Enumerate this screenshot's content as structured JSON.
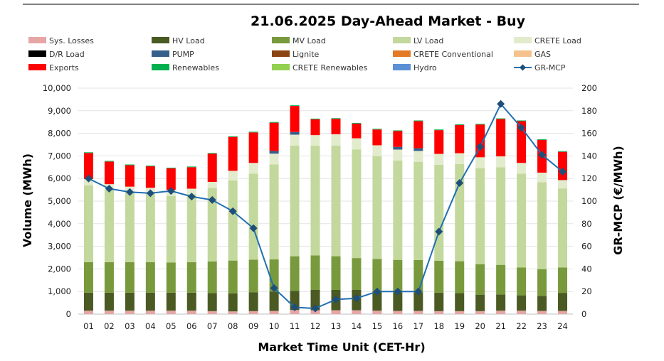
{
  "chart_data": {
    "type": "bar",
    "title": "21.06.2025  Day-Ahead Market - Buy",
    "xlabel": "Market Time Unit (CET-Hr)",
    "ylabel": "Volume (MWh)",
    "y2label": "GR-MCP (€/MWh)",
    "ylim": [
      0,
      10000
    ],
    "y2lim": [
      0,
      200
    ],
    "y_ticks": [
      "0",
      "1,000",
      "2,000",
      "3,000",
      "4,000",
      "5,000",
      "6,000",
      "7,000",
      "8,000",
      "9,000",
      "10,000"
    ],
    "y2_ticks": [
      "0",
      "20",
      "40",
      "60",
      "80",
      "100",
      "120",
      "140",
      "160",
      "180",
      "200"
    ],
    "stacked": true,
    "legend_position": "top",
    "categories": [
      "01",
      "02",
      "03",
      "04",
      "05",
      "06",
      "07",
      "08",
      "09",
      "10",
      "11",
      "12",
      "13",
      "14",
      "15",
      "16",
      "17",
      "18",
      "19",
      "20",
      "21",
      "22",
      "23",
      "24"
    ],
    "series": [
      {
        "name": "Sys. Losses",
        "color": "#e6a6a6",
        "values": [
          150,
          150,
          150,
          150,
          150,
          150,
          130,
          120,
          130,
          140,
          180,
          170,
          170,
          170,
          150,
          140,
          140,
          130,
          130,
          130,
          150,
          150,
          140,
          140
        ]
      },
      {
        "name": "HV Load",
        "color": "#4a5a22",
        "values": [
          800,
          800,
          800,
          800,
          800,
          800,
          800,
          800,
          830,
          850,
          850,
          900,
          900,
          900,
          850,
          820,
          820,
          820,
          800,
          730,
          720,
          680,
          660,
          800
        ]
      },
      {
        "name": "MV Load",
        "color": "#789a3c",
        "values": [
          1350,
          1350,
          1350,
          1350,
          1330,
          1350,
          1400,
          1450,
          1450,
          1430,
          1530,
          1530,
          1490,
          1410,
          1440,
          1440,
          1430,
          1410,
          1410,
          1350,
          1310,
          1230,
          1190,
          1120
        ]
      },
      {
        "name": "LV Load",
        "color": "#c3d89c",
        "values": [
          3400,
          3200,
          3100,
          3050,
          2950,
          3000,
          3250,
          3550,
          3800,
          4200,
          4900,
          4850,
          4900,
          4800,
          4550,
          4400,
          4350,
          4250,
          4300,
          4250,
          4320,
          4150,
          3850,
          3500
        ]
      },
      {
        "name": "CRETE Load",
        "color": "#e2ebcc",
        "values": [
          280,
          250,
          240,
          240,
          270,
          250,
          270,
          420,
          480,
          480,
          480,
          470,
          500,
          500,
          480,
          480,
          480,
          480,
          480,
          480,
          480,
          480,
          420,
          370
        ]
      },
      {
        "name": "D/R Load",
        "color": "#000000",
        "values": [
          0,
          0,
          0,
          0,
          0,
          0,
          0,
          0,
          0,
          0,
          0,
          0,
          0,
          0,
          0,
          0,
          0,
          0,
          0,
          0,
          0,
          0,
          0,
          0
        ]
      },
      {
        "name": "PUMP",
        "color": "#365f8a",
        "values": [
          0,
          0,
          0,
          0,
          0,
          0,
          0,
          0,
          0,
          120,
          120,
          0,
          0,
          0,
          0,
          120,
          120,
          0,
          0,
          0,
          0,
          0,
          0,
          0
        ]
      },
      {
        "name": "Lignite",
        "color": "#8b4513",
        "values": [
          0,
          0,
          0,
          0,
          0,
          0,
          0,
          0,
          0,
          0,
          0,
          0,
          0,
          0,
          0,
          0,
          0,
          0,
          0,
          0,
          0,
          0,
          0,
          0
        ]
      },
      {
        "name": "CRETE Conventional",
        "color": "#e37a25",
        "values": [
          0,
          0,
          0,
          0,
          0,
          0,
          0,
          0,
          0,
          0,
          0,
          0,
          0,
          0,
          0,
          0,
          0,
          0,
          0,
          0,
          0,
          0,
          0,
          0
        ]
      },
      {
        "name": "GAS",
        "color": "#f5c28e",
        "values": [
          0,
          0,
          0,
          0,
          0,
          0,
          0,
          0,
          0,
          0,
          0,
          0,
          0,
          0,
          0,
          0,
          0,
          0,
          0,
          0,
          0,
          0,
          0,
          0
        ]
      },
      {
        "name": "Exports",
        "color": "#ff0000",
        "values": [
          1150,
          1000,
          950,
          950,
          950,
          950,
          1250,
          1500,
          1350,
          1250,
          1150,
          700,
          680,
          650,
          700,
          700,
          1200,
          1050,
          1250,
          1450,
          1650,
          1850,
          1450,
          1250
        ]
      },
      {
        "name": "Renewables",
        "color": "#00b050",
        "values": [
          30,
          30,
          30,
          30,
          30,
          30,
          30,
          30,
          30,
          30,
          30,
          30,
          30,
          30,
          30,
          30,
          30,
          30,
          30,
          30,
          30,
          30,
          30,
          30
        ]
      },
      {
        "name": "CRETE Renewables",
        "color": "#92d050",
        "values": [
          0,
          0,
          0,
          0,
          0,
          0,
          0,
          0,
          0,
          0,
          0,
          0,
          0,
          0,
          0,
          0,
          0,
          0,
          0,
          0,
          0,
          0,
          0,
          0
        ]
      },
      {
        "name": "Hydro",
        "color": "#5b8fd6",
        "values": [
          0,
          0,
          0,
          0,
          0,
          0,
          0,
          0,
          0,
          0,
          0,
          0,
          0,
          0,
          0,
          0,
          0,
          0,
          0,
          0,
          0,
          0,
          0,
          0
        ]
      }
    ],
    "line_series": {
      "name": "GR-MCP",
      "color": "#1f6fb2",
      "marker_color": "#1f4e79",
      "axis": "right",
      "values": [
        120,
        111,
        108,
        107,
        109,
        104,
        101,
        91,
        76,
        23,
        6,
        5,
        13,
        14,
        20,
        20,
        20,
        73,
        116,
        148,
        186,
        165,
        141,
        126
      ]
    }
  }
}
